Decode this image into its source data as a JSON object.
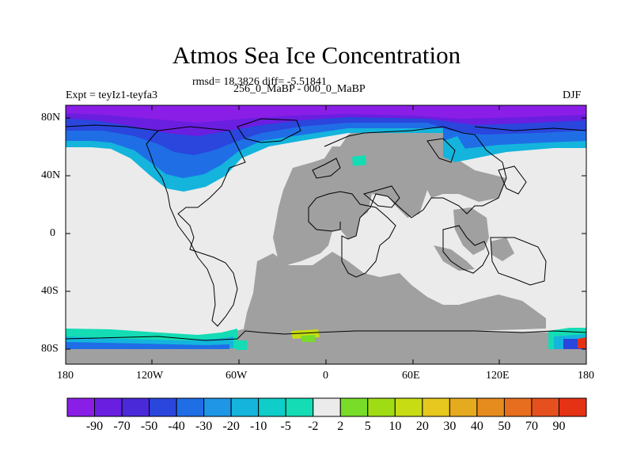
{
  "header": {
    "title": "Atmos Sea Ice Concentration",
    "stats": "rmsd= 18.3826 diff= -5.51841",
    "left_label": "Expt = teyIz1-teyfa3",
    "center_label": "256_0_MaBP - 000_0_MaBP",
    "right_label": "DJF"
  },
  "axes": {
    "lat_ticks": [
      "80N",
      "40N",
      "0",
      "40S",
      "80S"
    ],
    "lon_ticks": [
      "180",
      "120W",
      "60W",
      "0",
      "60E",
      "120E",
      "180"
    ]
  },
  "colorbar": {
    "labels": [
      "-90",
      "-70",
      "-50",
      "-40",
      "-30",
      "-20",
      "-10",
      "-5",
      "-2",
      "2",
      "5",
      "10",
      "20",
      "30",
      "40",
      "50",
      "70",
      "90"
    ],
    "colors": [
      "#8a1ee6",
      "#6a1ee0",
      "#4a2ad8",
      "#2a46dc",
      "#1f6ee6",
      "#1f96e6",
      "#14b4dc",
      "#0fcdc8",
      "#14dcb4",
      "#ebebeb",
      "#78dc28",
      "#a0dc14",
      "#c8dc14",
      "#e6c81e",
      "#e6aa1e",
      "#e68c1e",
      "#e66e1e",
      "#e6501e",
      "#e63214"
    ]
  },
  "colors": {
    "land": "#a0a0a0",
    "zero_change": "#ebebeb",
    "coast": "#000000"
  }
}
